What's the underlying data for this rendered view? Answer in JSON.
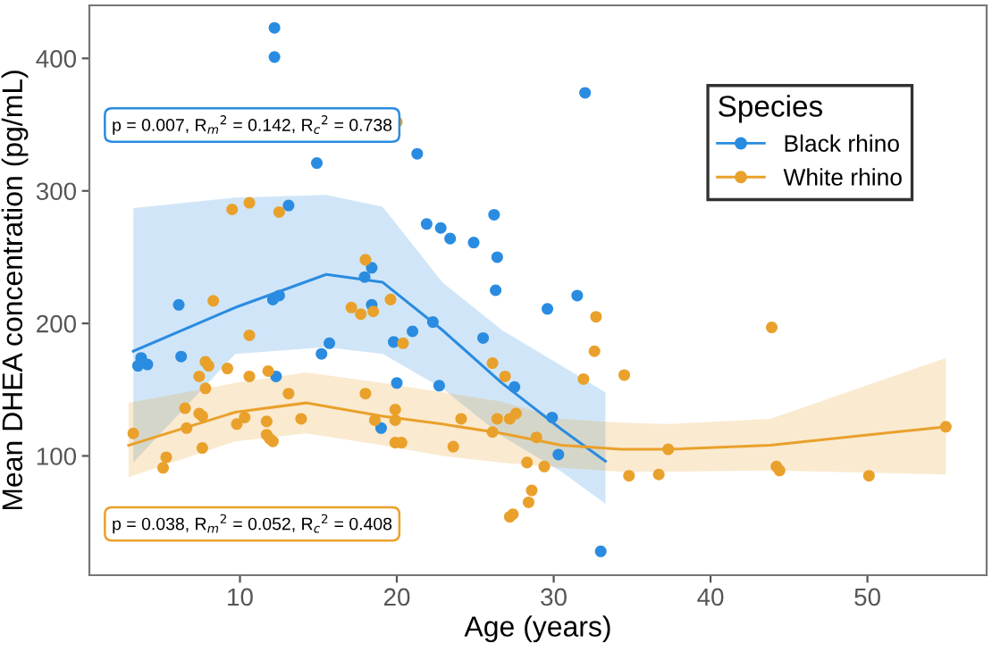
{
  "chart_data": {
    "type": "scatter",
    "xlabel": "Age (years)",
    "ylabel": "Mean DHEA concentration (pg/mL)",
    "legend_title": "Species",
    "legend": "top right",
    "marker": "circle",
    "grid": false,
    "xlim": [
      0.4,
      57.6
    ],
    "ylim": [
      10,
      440
    ],
    "xticks": [
      10,
      20,
      30,
      40,
      50
    ],
    "yticks": [
      100,
      200,
      300,
      400
    ],
    "annotations": [
      "p = 0.007, R$_{m}$$^{2}$ = 0.142, R$_{c}$$^{2}$ = 0.738",
      "p = 0.038, R$_{m}$$^{2}$ = 0.052, R$_{c}$$^{2}$ = 0.408"
    ],
    "series": [
      {
        "name": "Black rhino",
        "color": "#2a8ce0",
        "x": [
          12.2,
          12.2,
          14.9,
          13.1,
          6.1,
          12.1,
          12.5,
          3.5,
          3.7,
          4.1,
          6.25,
          15.7,
          15.2,
          12.3,
          17.95,
          18.4,
          18.4,
          32.0,
          21.3,
          21.9,
          22.8,
          23.4,
          24.9,
          26.2,
          26.4,
          26.3,
          29.6,
          31.5,
          22.3,
          21.0,
          19.8,
          20.0,
          22.7,
          19.0,
          25.5,
          27.5,
          29.9,
          30.3,
          33.0
        ],
        "values": [
          423,
          401,
          321,
          289,
          214,
          218,
          221,
          168,
          174,
          169,
          175,
          185,
          177,
          160,
          235,
          242,
          214,
          374,
          328,
          275,
          272,
          264,
          261,
          282,
          250,
          225,
          211,
          221,
          201,
          194,
          186,
          155,
          153,
          121,
          189,
          152,
          129,
          101,
          28
        ]
      },
      {
        "name": "White rhino",
        "color": "#e9a12b",
        "x": [
          3.2,
          6.5,
          6.6,
          5.1,
          5.3,
          7.4,
          7.6,
          7.6,
          9.5,
          10.6,
          12.5,
          8.3,
          10.6,
          7.8,
          8.0,
          7.4,
          7.8,
          9.2,
          10.6,
          11.8,
          13.1,
          9.8,
          10.3,
          11.7,
          11.7,
          11.9,
          12.1,
          13.9,
          18.0,
          17.1,
          17.7,
          18.0,
          18.6,
          20.0,
          18.5,
          19.6,
          20.4,
          19.9,
          19.9,
          19.9,
          20.3,
          23.6,
          24.1,
          26.1,
          26.9,
          26.1,
          26.4,
          27.2,
          27.6,
          28.9,
          28.3,
          29.4,
          28.6,
          28.4,
          27.4,
          27.2,
          31.9,
          32.6,
          32.7,
          34.5,
          34.8,
          36.7,
          37.3,
          43.9,
          44.2,
          44.4,
          50.1,
          55.0
        ],
        "values": [
          117,
          136,
          121,
          91,
          99,
          132,
          130,
          106,
          286,
          291,
          284,
          217,
          191,
          171,
          168,
          160,
          151,
          166,
          160,
          164,
          147,
          124,
          129,
          126,
          116,
          113,
          111,
          128,
          248,
          212,
          207,
          147,
          127,
          352,
          209,
          218,
          185,
          135,
          127,
          110,
          110,
          107,
          128,
          170,
          160,
          118,
          128,
          128,
          132,
          114,
          95,
          92,
          74,
          65,
          56,
          54,
          158,
          179,
          205,
          161,
          85,
          86,
          105,
          197,
          92,
          89,
          85,
          122
        ]
      },
      {
        "type": "line",
        "marker": "none",
        "color": "#2a8ce0",
        "x": [
          3.2,
          9.7,
          15.5,
          19.1,
          22.9,
          26.7,
          30.5,
          33.3
        ],
        "values": [
          179,
          212,
          237,
          231,
          195,
          155,
          120,
          96
        ],
        "lower": [
          95,
          177,
          182,
          177,
          151,
          115,
          88,
          64
        ],
        "upper": [
          287,
          295,
          297,
          288,
          231,
          195,
          168,
          148
        ]
      },
      {
        "type": "line",
        "marker": "none",
        "color": "#e9a12b",
        "x": [
          2.9,
          9.7,
          14.2,
          19.1,
          22.9,
          26.7,
          30.5,
          34.3,
          37.3,
          43.8,
          55.0
        ],
        "values": [
          108,
          133,
          140,
          130,
          124,
          117,
          108,
          105,
          105,
          108,
          122
        ],
        "lower": [
          84,
          111,
          117,
          108,
          100,
          95,
          91,
          88,
          88,
          89,
          86
        ],
        "upper": [
          140,
          155,
          163,
          155,
          148,
          141,
          128,
          125,
          124,
          128,
          174
        ]
      }
    ]
  }
}
